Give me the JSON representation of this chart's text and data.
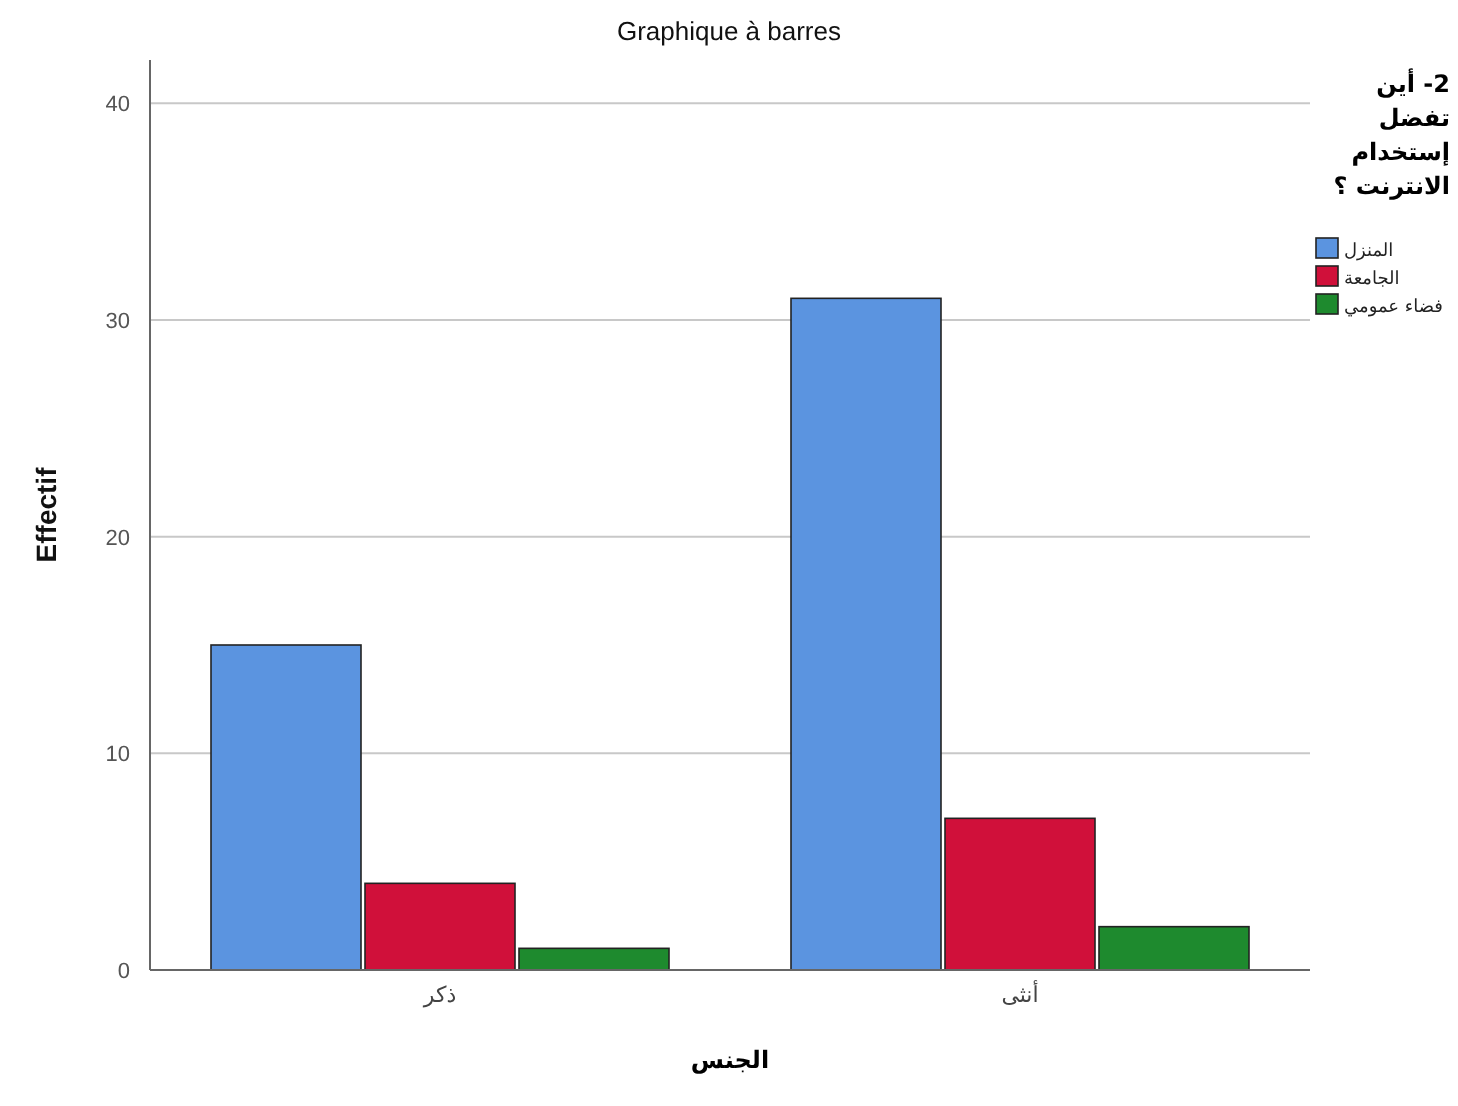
{
  "chart_data": {
    "type": "bar",
    "title": "Graphique à barres",
    "xlabel": "الجنس",
    "ylabel": "Effectif",
    "legend_title": "2- أين تفضل إستخدام الانترنت ؟",
    "categories": [
      "ذكر",
      "أنثى"
    ],
    "series": [
      {
        "name": "المنزل",
        "color": "#5b94e0",
        "values": [
          15,
          31
        ]
      },
      {
        "name": "الجامعة",
        "color": "#d0103a",
        "values": [
          4,
          7
        ]
      },
      {
        "name": "فضاء عمومي",
        "color": "#1e8a2e",
        "values": [
          1,
          2
        ]
      }
    ],
    "ylim": [
      0,
      42
    ],
    "yticks": [
      0,
      10,
      20,
      30,
      40
    ],
    "grid": "y",
    "legend": "right"
  }
}
